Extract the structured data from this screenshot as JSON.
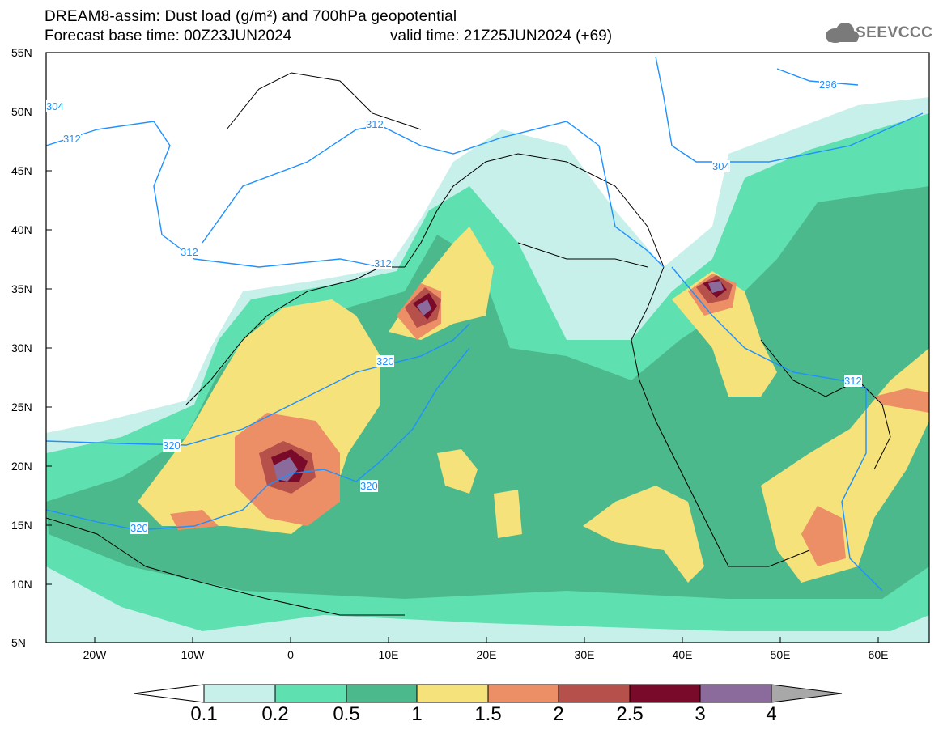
{
  "title": {
    "line1": "DREAM8-assim: Dust load (g/m²) and 700hPa geopotential",
    "base_time": "Forecast base time: 00Z23JUN2024",
    "valid_time": "valid time: 21Z25JUN2024 (+69)"
  },
  "logo": {
    "text": "SEEVCCC",
    "icon": "cloud-icon"
  },
  "map": {
    "lon_range": [
      -25,
      65
    ],
    "lat_range": [
      5,
      55
    ],
    "y_ticks": [
      "55N",
      "50N",
      "45N",
      "40N",
      "35N",
      "30N",
      "25N",
      "20N",
      "15N",
      "10N",
      "5N"
    ],
    "x_ticks": [
      "20W",
      "10W",
      "0",
      "10E",
      "20E",
      "30E",
      "40E",
      "50E",
      "60E"
    ],
    "contour_labels": [
      "304",
      "312",
      "312",
      "312",
      "312",
      "320",
      "320",
      "320",
      "320",
      "296",
      "304",
      "312"
    ],
    "contour_color": "#1e90ff"
  },
  "colorbar": {
    "labels": [
      "0.1",
      "0.2",
      "0.5",
      "1",
      "1.5",
      "2",
      "2.5",
      "3",
      "4"
    ],
    "colors": [
      "#c8f0ea",
      "#5fe0b0",
      "#4cb98c",
      "#f5e27a",
      "#ec8f66",
      "#b5504a",
      "#7a0a2a",
      "#8b6a9c",
      "#a8a8a8"
    ]
  }
}
